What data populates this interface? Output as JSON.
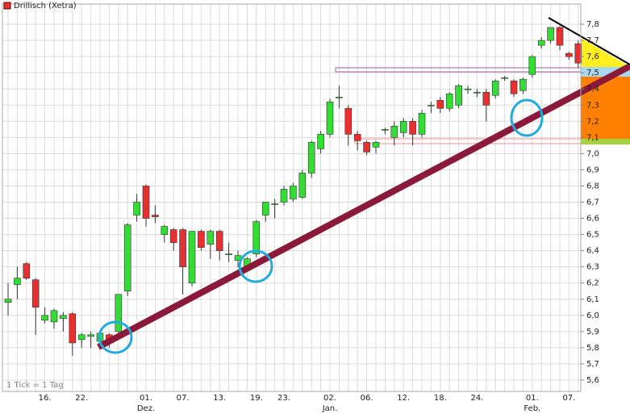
{
  "chart_data": {
    "type": "candlestick",
    "title": "Drillisch (Xetra)",
    "footnote": "1 Tick = 1 Tag",
    "up_color": "#33dd33",
    "down_color": "#e83030",
    "legend_color": "#e83030",
    "categories": [
      null,
      null,
      null,
      null,
      "16.",
      null,
      null,
      null,
      "22.",
      null,
      null,
      null,
      null,
      null,
      null,
      "01.",
      null,
      null,
      null,
      "07.",
      null,
      null,
      null,
      "13.",
      null,
      null,
      null,
      "19.",
      null,
      null,
      "23.",
      null,
      null,
      null,
      null,
      "02.",
      null,
      null,
      null,
      "06.",
      null,
      null,
      null,
      "12.",
      null,
      null,
      null,
      "18.",
      null,
      null,
      null,
      "24.",
      null,
      null,
      null,
      null,
      null,
      "01.",
      null,
      null,
      null,
      "07.",
      null
    ],
    "category_sublabels": [
      null,
      null,
      null,
      null,
      null,
      null,
      null,
      null,
      null,
      null,
      null,
      null,
      null,
      null,
      null,
      "Dez.",
      null,
      null,
      null,
      null,
      null,
      null,
      null,
      null,
      null,
      null,
      null,
      null,
      null,
      null,
      null,
      null,
      null,
      null,
      null,
      "Jan.",
      null,
      null,
      null,
      null,
      null,
      null,
      null,
      null,
      null,
      null,
      null,
      null,
      null,
      null,
      null,
      null,
      null,
      null,
      null,
      null,
      null,
      "Feb.",
      null,
      null,
      null,
      null,
      null
    ],
    "open": [
      6.08,
      6.19,
      6.32,
      6.22,
      5.97,
      5.96,
      5.98,
      6.01,
      5.85,
      5.87,
      5.84,
      5.88,
      5.9,
      6.15,
      6.62,
      6.8,
      6.62,
      6.5,
      6.53,
      6.53,
      6.2,
      6.52,
      6.44,
      6.52,
      6.38,
      6.34,
      6.3,
      6.38,
      6.62,
      6.69,
      6.7,
      6.72,
      6.73,
      6.88,
      7.03,
      7.12,
      7.35,
      7.28,
      7.12,
      7.07,
      7.04,
      7.15,
      7.1,
      7.13,
      7.2,
      7.12,
      7.3,
      7.33,
      7.28,
      7.3,
      7.4,
      7.38,
      7.38,
      7.36,
      7.47,
      7.45,
      7.39,
      7.49,
      7.67,
      7.7,
      7.78,
      7.62,
      7.68
    ],
    "high": [
      6.2,
      6.3,
      6.33,
      6.23,
      6.05,
      6.04,
      6.02,
      6.02,
      5.89,
      5.9,
      5.9,
      5.89,
      6.13,
      6.57,
      6.75,
      6.81,
      6.68,
      6.56,
      6.54,
      6.54,
      6.52,
      6.53,
      6.53,
      6.53,
      6.45,
      6.4,
      6.36,
      6.59,
      6.7,
      6.72,
      6.8,
      6.82,
      6.9,
      7.08,
      7.14,
      7.34,
      7.42,
      7.3,
      7.14,
      7.08,
      7.08,
      7.16,
      7.2,
      7.22,
      7.22,
      7.27,
      7.32,
      7.35,
      7.38,
      7.43,
      7.42,
      7.4,
      7.4,
      7.46,
      7.48,
      7.46,
      7.47,
      7.61,
      7.72,
      7.78,
      7.79,
      7.63,
      7.7
    ],
    "low": [
      6.0,
      6.1,
      6.22,
      5.88,
      5.95,
      5.92,
      5.9,
      5.75,
      5.8,
      5.8,
      5.8,
      5.8,
      5.85,
      6.12,
      6.58,
      6.55,
      6.57,
      6.45,
      6.4,
      6.13,
      6.18,
      6.4,
      6.35,
      6.34,
      6.33,
      6.3,
      6.28,
      6.36,
      6.58,
      6.6,
      6.68,
      6.7,
      6.72,
      6.85,
      7.0,
      7.1,
      7.28,
      7.05,
      7.02,
      6.99,
      7.0,
      7.12,
      7.05,
      7.1,
      7.05,
      7.1,
      7.25,
      7.25,
      7.26,
      7.28,
      7.37,
      7.35,
      7.2,
      7.34,
      7.45,
      7.35,
      7.37,
      7.47,
      7.65,
      7.68,
      7.64,
      7.58,
      7.53
    ],
    "close": [
      6.1,
      6.23,
      6.23,
      6.05,
      6.0,
      6.03,
      6.0,
      5.83,
      5.88,
      5.88,
      5.89,
      5.84,
      6.13,
      6.56,
      6.7,
      6.6,
      6.61,
      6.55,
      6.45,
      6.3,
      6.52,
      6.42,
      6.52,
      6.4,
      6.38,
      6.37,
      6.35,
      6.58,
      6.7,
      6.69,
      6.78,
      6.8,
      6.88,
      7.07,
      7.12,
      7.32,
      7.35,
      7.12,
      7.08,
      7.01,
      7.07,
      7.15,
      7.17,
      7.2,
      7.12,
      7.25,
      7.3,
      7.28,
      7.37,
      7.42,
      7.4,
      7.38,
      7.3,
      7.45,
      7.47,
      7.37,
      7.46,
      7.6,
      7.7,
      7.78,
      7.67,
      7.6,
      7.56
    ],
    "ylim": [
      5.53,
      7.925
    ],
    "yticks": [
      {
        "value": 5.6,
        "label": "5,6"
      },
      {
        "value": 5.7,
        "label": "5,7"
      },
      {
        "value": 5.8,
        "label": "5,8"
      },
      {
        "value": 5.9,
        "label": "5,9"
      },
      {
        "value": 6.0,
        "label": "6,0"
      },
      {
        "value": 6.1,
        "label": "6,1"
      },
      {
        "value": 6.2,
        "label": "6,2"
      },
      {
        "value": 6.3,
        "label": "6,3"
      },
      {
        "value": 6.4,
        "label": "6,4"
      },
      {
        "value": 6.5,
        "label": "6,5"
      },
      {
        "value": 6.6,
        "label": "6,6"
      },
      {
        "value": 6.7,
        "label": "6,7"
      },
      {
        "value": 6.8,
        "label": "6,8"
      },
      {
        "value": 6.9,
        "label": "6,9"
      },
      {
        "value": 7.0,
        "label": "7,0"
      },
      {
        "value": 7.1,
        "label": "7,1"
      },
      {
        "value": 7.2,
        "label": "7,2"
      },
      {
        "value": 7.3,
        "label": "7,3"
      },
      {
        "value": 7.4,
        "label": "7,4"
      },
      {
        "value": 7.5,
        "label": "7,5"
      },
      {
        "value": 7.6,
        "label": "7,6"
      },
      {
        "value": 7.7,
        "label": "7,7"
      },
      {
        "value": 7.8,
        "label": "7,8"
      }
    ],
    "grid": true
  }
}
